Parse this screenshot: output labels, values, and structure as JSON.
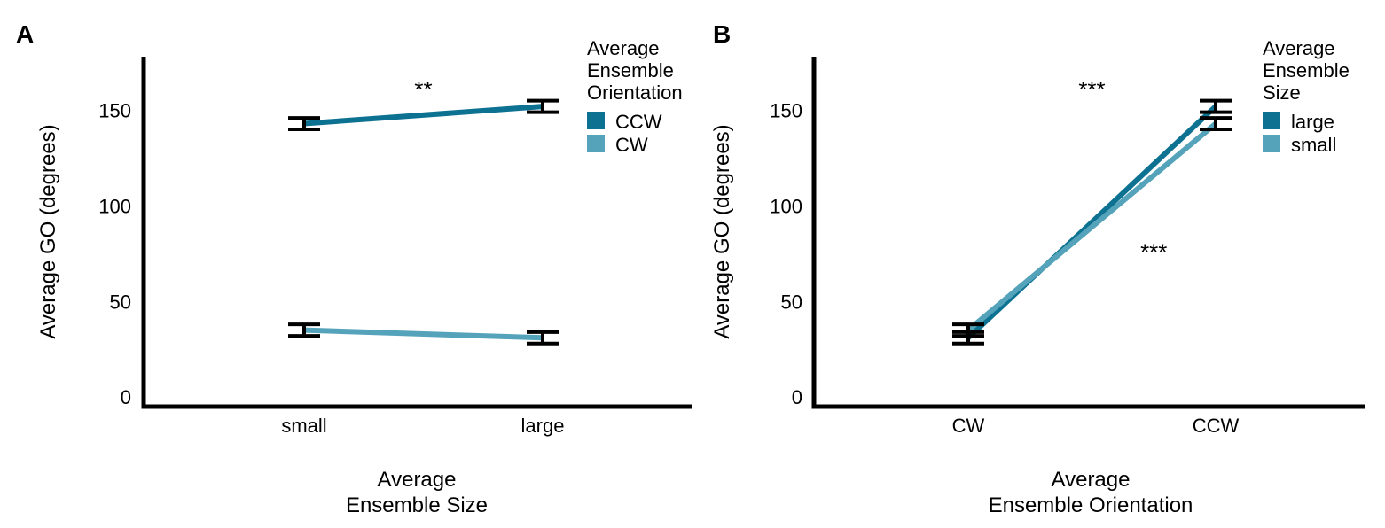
{
  "chart_data": [
    {
      "type": "line",
      "panel": "A",
      "xlabel": [
        "Average",
        "Ensemble Size"
      ],
      "ylabel": "Average GO (degrees)",
      "categories": [
        "small",
        "large"
      ],
      "ylim": [
        -5,
        178
      ],
      "yticks": [
        0,
        50,
        100,
        150
      ],
      "legend": {
        "title": [
          "Average",
          "Ensemble",
          "Orientation"
        ],
        "placement": "right",
        "entries": [
          "CCW",
          "CW"
        ]
      },
      "series": [
        {
          "name": "CCW",
          "color": "#0d7291",
          "values": [
            143,
            152
          ],
          "errors": [
            3,
            3
          ]
        },
        {
          "name": "CW",
          "color": "#54a3ba",
          "values": [
            35,
            31
          ],
          "errors": [
            3,
            3
          ]
        }
      ],
      "annotations": [
        {
          "text": "**",
          "x": 0.5,
          "y": 165
        }
      ],
      "grid": false
    },
    {
      "type": "line",
      "panel": "B",
      "xlabel": [
        "Average",
        "Ensemble Orientation"
      ],
      "ylabel": "Average GO (degrees)",
      "categories": [
        "CW",
        "CCW"
      ],
      "ylim": [
        -5,
        178
      ],
      "yticks": [
        0,
        50,
        100,
        150
      ],
      "legend": {
        "title": [
          "Average",
          "Ensemble",
          "Size"
        ],
        "placement": "right",
        "entries": [
          "large",
          "small"
        ]
      },
      "series": [
        {
          "name": "large",
          "color": "#0d7291",
          "values": [
            31,
            152
          ],
          "errors": [
            3,
            3
          ]
        },
        {
          "name": "small",
          "color": "#54a3ba",
          "values": [
            35,
            143
          ],
          "errors": [
            3,
            3
          ]
        }
      ],
      "annotations": [
        {
          "text": "***",
          "x": 0.5,
          "y": 165
        },
        {
          "text": "***",
          "x": 0.75,
          "y": 80
        }
      ],
      "grid": false
    }
  ]
}
